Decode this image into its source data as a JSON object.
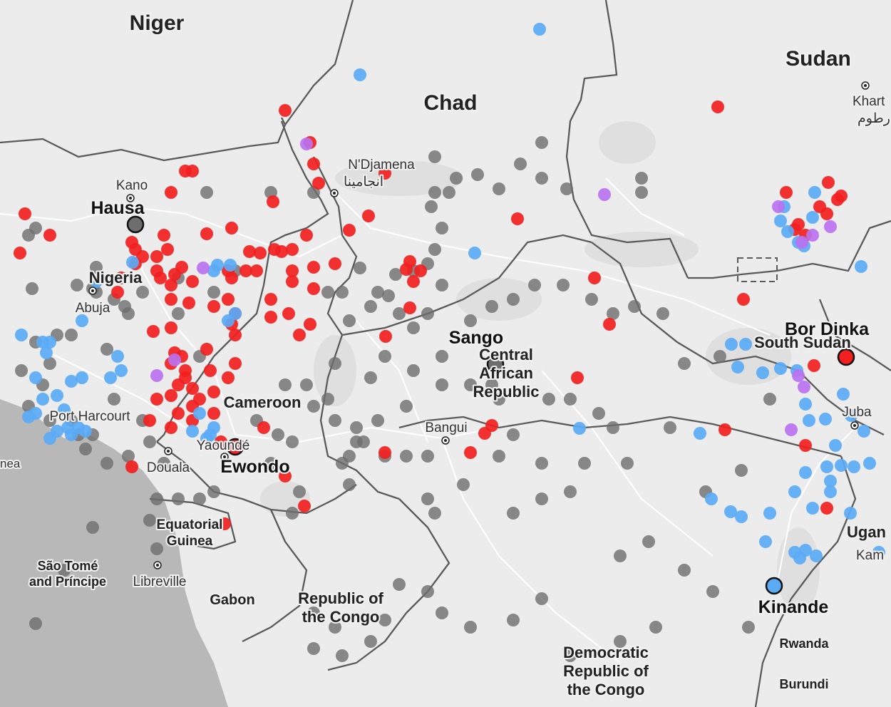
{
  "map": {
    "countries": [
      {
        "label": "Niger",
        "size": 30
      },
      {
        "label": "Chad",
        "size": 30
      },
      {
        "label": "Sudan",
        "size": 30
      },
      {
        "label": "Nigeria",
        "size": 22
      },
      {
        "label": "Cameroon",
        "size": 22
      },
      {
        "label": "Central",
        "size": 22
      },
      {
        "label": "African",
        "size": 22
      },
      {
        "label": "Republic",
        "size": 22
      },
      {
        "label": "South Sudan",
        "size": 22
      },
      {
        "label": "Equatorial",
        "size": 19
      },
      {
        "label": "Guinea",
        "size": 19
      },
      {
        "label": "São Tomé",
        "size": 18
      },
      {
        "label": "and Príncipe",
        "size": 18
      },
      {
        "label": "Gabon",
        "size": 20
      },
      {
        "label": "Republic of",
        "size": 22
      },
      {
        "label": "the Congo",
        "size": 22
      },
      {
        "label": "Democratic",
        "size": 22
      },
      {
        "label": "Republic of",
        "size": 22
      },
      {
        "label": "the Congo",
        "size": 22
      },
      {
        "label": "Ugan",
        "size": 22
      },
      {
        "label": "Rwanda",
        "size": 18
      },
      {
        "label": "Burundi",
        "size": 18
      }
    ],
    "cities": [
      "Kano",
      "Abuja",
      "Port Harcourt",
      "N'Djamena",
      "انجامينا",
      "Bangui",
      "Yaoundé",
      "Douala",
      "Libreville",
      "Juba",
      "Khart",
      "رطوم",
      "Kam",
      "nea"
    ],
    "languages": [
      "Hausa",
      "Sango",
      "Bor Dinka",
      "Ewondo",
      "Kinande"
    ],
    "colors": {
      "land": "#ececec",
      "sea": "#b9b9b9",
      "border": "#5a5a5a",
      "road": "#ffffff",
      "dot_red": "#f22020",
      "dot_blue": "#5aaaf6",
      "dot_gray": "#6e6e6e",
      "dot_purple": "#bb72f0"
    }
  }
}
